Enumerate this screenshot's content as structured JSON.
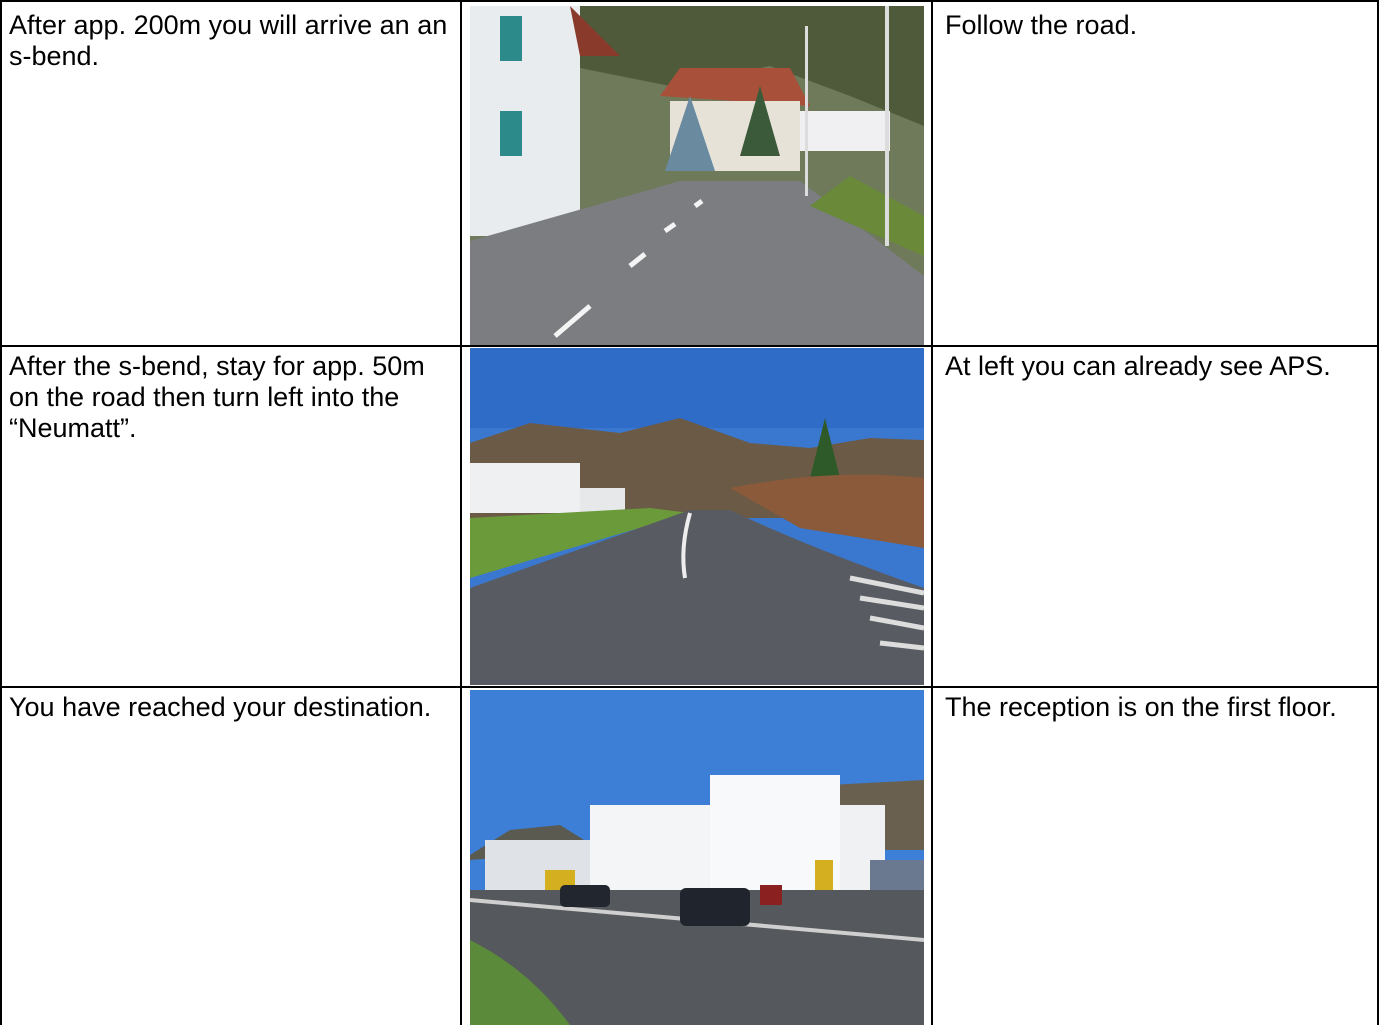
{
  "table": {
    "rows": [
      [
        "After app. 200m you will arrive an an s-bend.",
        "Follow the road."
      ],
      [
        "After the s-bend, stay for app. 50m on the road then turn left into the “Neumatt”.",
        "At left you can already see APS."
      ],
      [
        "You have reached your destination.",
        "The reception is on the first floor."
      ]
    ]
  }
}
